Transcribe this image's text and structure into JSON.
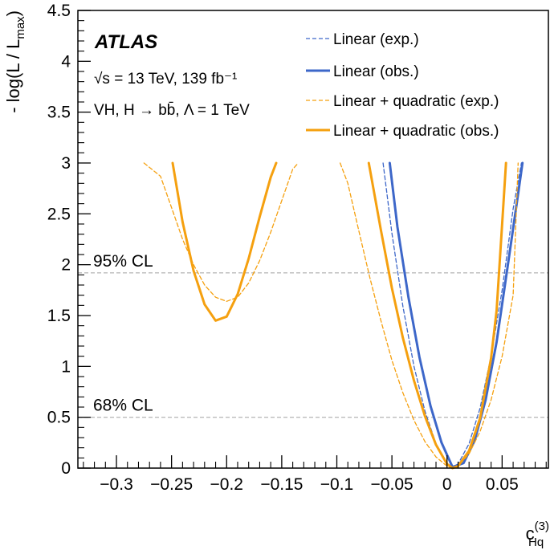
{
  "chart_data": {
    "type": "line",
    "title": "",
    "experiment": "ATLAS",
    "info_lines": {
      "energy": "√s = 13 TeV, 139 fb⁻¹",
      "process": "VH, H → bb̄, Λ = 1 TeV"
    },
    "xlabel": {
      "main": "c",
      "sup": "(3)",
      "sub": "Hq"
    },
    "ylabel": {
      "prefix": "- log(L / L",
      "sub": "max",
      "suffix": ")"
    },
    "xlim": [
      -0.335,
      0.092
    ],
    "ylim": [
      0,
      4.5
    ],
    "x_ticks": [
      -0.3,
      -0.25,
      -0.2,
      -0.15,
      -0.1,
      -0.05,
      0,
      0.05
    ],
    "x_tick_labels": [
      "−0.3",
      "−0.25",
      "−0.2",
      "−0.15",
      "−0.1",
      "−0.05",
      "0",
      "0.05"
    ],
    "y_ticks": [
      0,
      0.5,
      1,
      1.5,
      2,
      2.5,
      3,
      3.5,
      4,
      4.5
    ],
    "y_tick_labels": [
      "0",
      "0.5",
      "1",
      "1.5",
      "2",
      "2.5",
      "3",
      "3.5",
      "4",
      "4.5"
    ],
    "reference_lines": [
      {
        "y": 1.92,
        "label": "95% CL"
      },
      {
        "y": 0.5,
        "label": "68% CL"
      }
    ],
    "series": [
      {
        "name": "Linear (exp.)",
        "color": "#3d67c9",
        "style": "dashed",
        "width": 1.3,
        "x": [
          -0.058,
          -0.05,
          -0.04,
          -0.03,
          -0.02,
          -0.01,
          0.0,
          0.004,
          0.01,
          0.02,
          0.03,
          0.04,
          0.05,
          0.06,
          0.0675
        ],
        "y": [
          3.0,
          2.31,
          1.59,
          1.0,
          0.56,
          0.24,
          0.05,
          0.0,
          0.04,
          0.24,
          0.59,
          1.1,
          1.75,
          2.55,
          3.0
        ]
      },
      {
        "name": "Linear (obs.)",
        "color": "#3d67c9",
        "style": "solid",
        "width": 3,
        "x": [
          -0.052,
          -0.045,
          -0.035,
          -0.025,
          -0.015,
          -0.005,
          0.005,
          0.015,
          0.025,
          0.035,
          0.045,
          0.055,
          0.065,
          0.0685
        ],
        "y": [
          3.0,
          2.37,
          1.68,
          1.09,
          0.61,
          0.25,
          0.01,
          0.05,
          0.27,
          0.67,
          1.24,
          1.98,
          2.73,
          3.0
        ]
      },
      {
        "name": "Linear + quadratic (exp.)",
        "color": "#f5a00f",
        "style": "dashed",
        "width": 1.3,
        "x": [
          -0.275,
          -0.26,
          -0.25,
          -0.24,
          -0.23,
          -0.22,
          -0.21,
          -0.2,
          -0.19,
          -0.18,
          -0.17,
          -0.16,
          -0.15,
          -0.14,
          -0.135,
          null,
          -0.097,
          -0.09,
          -0.08,
          -0.07,
          -0.06,
          -0.05,
          -0.04,
          -0.03,
          -0.02,
          -0.01,
          0.0,
          0.005,
          0.01,
          0.02,
          0.03,
          0.04,
          0.05,
          0.06,
          0.0645
        ],
        "y": [
          3.0,
          2.87,
          2.56,
          2.25,
          2.0,
          1.8,
          1.68,
          1.64,
          1.68,
          1.82,
          2.04,
          2.32,
          2.63,
          2.94,
          3.0,
          null,
          3.0,
          2.8,
          2.33,
          1.87,
          1.45,
          1.06,
          0.74,
          0.47,
          0.26,
          0.11,
          0.02,
          0.0,
          0.02,
          0.14,
          0.36,
          0.67,
          1.1,
          1.7,
          3.0
        ]
      },
      {
        "name": "Linear + quadratic (obs.)",
        "color": "#f5a00f",
        "style": "solid",
        "width": 3,
        "x": [
          -0.249,
          -0.24,
          -0.23,
          -0.22,
          -0.21,
          -0.2,
          -0.19,
          -0.18,
          -0.17,
          -0.16,
          -0.155,
          null,
          -0.071,
          -0.06,
          -0.05,
          -0.04,
          -0.03,
          -0.02,
          -0.01,
          0.0,
          0.005,
          0.01,
          0.02,
          0.03,
          0.04,
          0.045,
          0.05,
          0.0535
        ],
        "y": [
          3.0,
          2.42,
          1.94,
          1.61,
          1.45,
          1.49,
          1.71,
          2.06,
          2.47,
          2.86,
          3.0,
          null,
          3.0,
          2.34,
          1.77,
          1.28,
          0.86,
          0.51,
          0.23,
          0.04,
          0.0,
          0.02,
          0.17,
          0.49,
          1.08,
          1.55,
          2.4,
          3.0
        ]
      }
    ]
  }
}
